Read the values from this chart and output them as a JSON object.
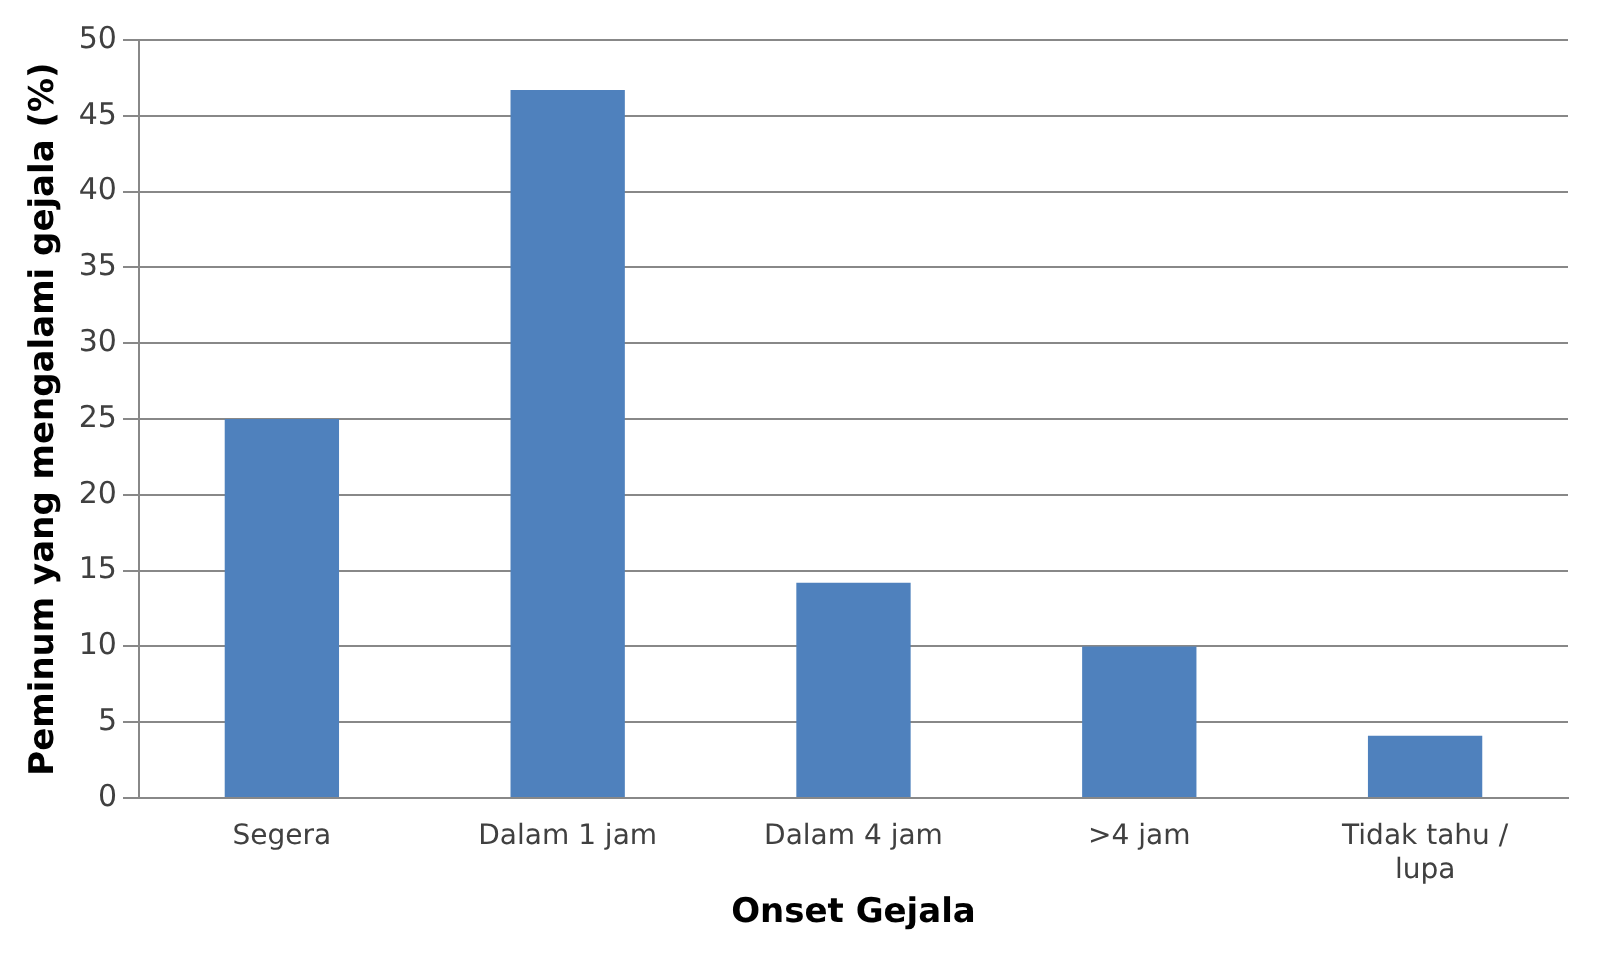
{
  "chart_data": {
    "type": "bar",
    "xlabel": "Onset Gejala",
    "ylabel": "Peminum yang mengalami gejala (%)",
    "categories": [
      "Segera",
      "Dalam 1 jam",
      "Dalam 4 jam",
      ">4 jam",
      "Tidak tahu / lupa"
    ],
    "values": [
      25,
      46.7,
      14.2,
      10,
      4.1
    ],
    "color": "#4f81bd",
    "ylim": [
      0,
      50
    ],
    "yticks": [
      0,
      5,
      10,
      15,
      20,
      25,
      30,
      35,
      40,
      45,
      50
    ],
    "grid": "y",
    "legend": false
  }
}
